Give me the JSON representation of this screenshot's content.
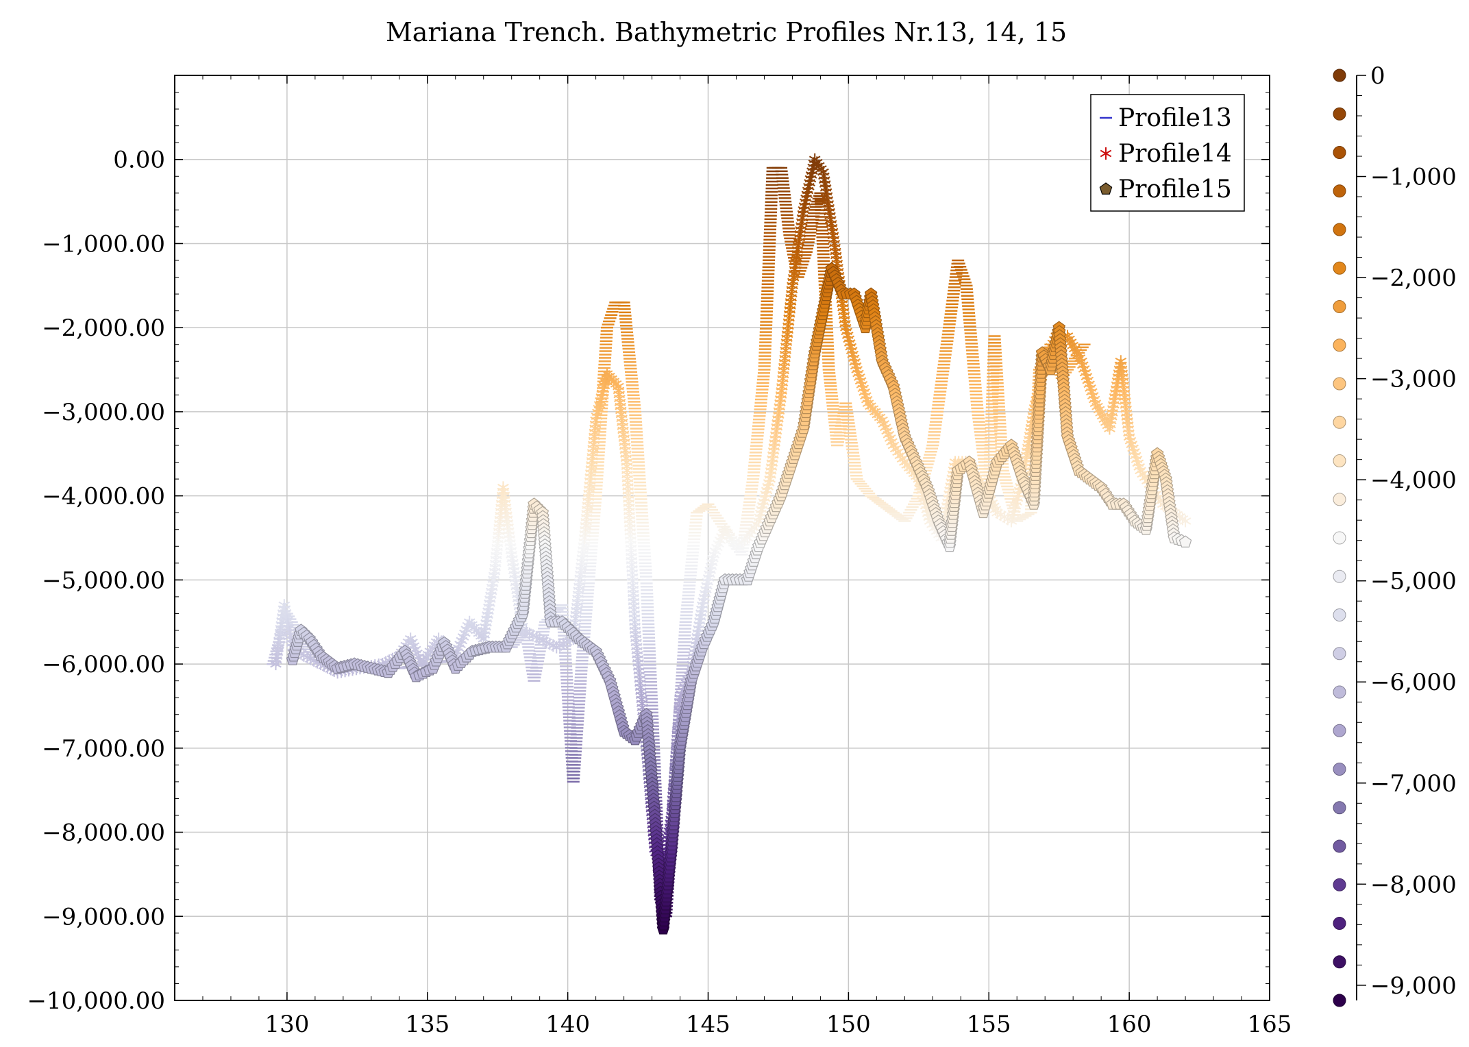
{
  "chart_data": {
    "type": "scatter",
    "title": "Mariana Trench. Bathymetric Profiles Nr.13, 14, 15",
    "xlabel": "",
    "ylabel": "",
    "xlim": [
      126,
      165
    ],
    "ylim": [
      -10000,
      1000
    ],
    "grid": true,
    "legend_position": "top-right",
    "x_ticks": [
      {
        "value": 130,
        "label": "130"
      },
      {
        "value": 135,
        "label": "135"
      },
      {
        "value": 140,
        "label": "140"
      },
      {
        "value": 145,
        "label": "145"
      },
      {
        "value": 150,
        "label": "150"
      },
      {
        "value": 155,
        "label": "155"
      },
      {
        "value": 160,
        "label": "160"
      },
      {
        "value": 165,
        "label": "165"
      }
    ],
    "y_ticks": [
      {
        "value": 0,
        "label": "0.00"
      },
      {
        "value": -1000,
        "label": "−1,000.00"
      },
      {
        "value": -2000,
        "label": "−2,000.00"
      },
      {
        "value": -3000,
        "label": "−3,000.00"
      },
      {
        "value": -4000,
        "label": "−4,000.00"
      },
      {
        "value": -5000,
        "label": "−5,000.00"
      },
      {
        "value": -6000,
        "label": "−6,000.00"
      },
      {
        "value": -7000,
        "label": "−7,000.00"
      },
      {
        "value": -8000,
        "label": "−8,000.00"
      },
      {
        "value": -9000,
        "label": "−9,000.00"
      },
      {
        "value": -10000,
        "label": "−10,000.00"
      }
    ],
    "colorbar": {
      "range": [
        -9150,
        0
      ],
      "ticks": [
        {
          "value": 0,
          "label": "0"
        },
        {
          "value": -1000,
          "label": "−1,000"
        },
        {
          "value": -2000,
          "label": "−2,000"
        },
        {
          "value": -3000,
          "label": "−3,000"
        },
        {
          "value": -4000,
          "label": "−4,000"
        },
        {
          "value": -5000,
          "label": "−5,000"
        },
        {
          "value": -6000,
          "label": "−6,000"
        },
        {
          "value": -7000,
          "label": "−7,000"
        },
        {
          "value": -8000,
          "label": "−8,000"
        },
        {
          "value": -9000,
          "label": "−9,000"
        }
      ],
      "colors": [
        "#2d004b",
        "#542788",
        "#8073ac",
        "#b2abd2",
        "#d8daeb",
        "#f7f7f7",
        "#fee0b6",
        "#fdb863",
        "#e08214",
        "#b35806",
        "#7f3b08"
      ]
    },
    "series": [
      {
        "name": "Profile13",
        "marker": "minus",
        "legend_color": "#3333cc",
        "points": [
          [
            129.5,
            -6000
          ],
          [
            130.0,
            -5400
          ],
          [
            130.5,
            -5700
          ],
          [
            131.0,
            -5950
          ],
          [
            132.0,
            -6050
          ],
          [
            133.0,
            -6000
          ],
          [
            134.0,
            -6050
          ],
          [
            135.0,
            -6000
          ],
          [
            136.0,
            -5950
          ],
          [
            137.0,
            -5800
          ],
          [
            138.0,
            -5800
          ],
          [
            138.5,
            -5600
          ],
          [
            138.8,
            -6200
          ],
          [
            139.2,
            -5500
          ],
          [
            139.8,
            -5300
          ],
          [
            140.2,
            -7400
          ],
          [
            140.5,
            -6000
          ],
          [
            141.0,
            -4000
          ],
          [
            141.4,
            -2000
          ],
          [
            141.7,
            -1700
          ],
          [
            142.0,
            -1700
          ],
          [
            142.4,
            -3000
          ],
          [
            142.8,
            -5000
          ],
          [
            143.3,
            -8800
          ],
          [
            143.5,
            -9000
          ],
          [
            143.8,
            -7500
          ],
          [
            144.2,
            -5500
          ],
          [
            144.6,
            -4200
          ],
          [
            145.0,
            -4100
          ],
          [
            145.4,
            -4300
          ],
          [
            145.8,
            -4500
          ],
          [
            146.2,
            -4700
          ],
          [
            146.6,
            -3800
          ],
          [
            147.0,
            -2500
          ],
          [
            147.3,
            -100
          ],
          [
            147.6,
            -100
          ],
          [
            147.9,
            -900
          ],
          [
            148.2,
            -1400
          ],
          [
            148.5,
            -1100
          ],
          [
            148.8,
            -600
          ],
          [
            149.0,
            -400
          ],
          [
            149.3,
            -2500
          ],
          [
            149.6,
            -3400
          ],
          [
            149.9,
            -2900
          ],
          [
            150.3,
            -3800
          ],
          [
            150.8,
            -4000
          ],
          [
            151.2,
            -4100
          ],
          [
            151.6,
            -4200
          ],
          [
            152.0,
            -4300
          ],
          [
            152.5,
            -4000
          ],
          [
            153.0,
            -3400
          ],
          [
            153.5,
            -2200
          ],
          [
            153.9,
            -1200
          ],
          [
            154.2,
            -1500
          ],
          [
            154.6,
            -3000
          ],
          [
            155.0,
            -4000
          ],
          [
            155.2,
            -2100
          ],
          [
            155.5,
            -3700
          ],
          [
            156.0,
            -4300
          ],
          [
            156.5,
            -4200
          ],
          [
            156.8,
            -2500
          ],
          [
            157.2,
            -2200
          ],
          [
            157.6,
            -2600
          ],
          [
            158.0,
            -2400
          ],
          [
            158.4,
            -2200
          ]
        ]
      },
      {
        "name": "Profile14",
        "marker": "asterisk",
        "legend_color": "#cc1111",
        "points": [
          [
            129.6,
            -6000
          ],
          [
            129.9,
            -5300
          ],
          [
            130.2,
            -5800
          ],
          [
            130.6,
            -5900
          ],
          [
            131.2,
            -6000
          ],
          [
            131.8,
            -6100
          ],
          [
            132.6,
            -6050
          ],
          [
            133.4,
            -6000
          ],
          [
            134.0,
            -5900
          ],
          [
            134.4,
            -5700
          ],
          [
            134.8,
            -6000
          ],
          [
            135.4,
            -5700
          ],
          [
            136.0,
            -5900
          ],
          [
            136.5,
            -5500
          ],
          [
            137.0,
            -5700
          ],
          [
            137.4,
            -4900
          ],
          [
            137.7,
            -3900
          ],
          [
            138.0,
            -4700
          ],
          [
            138.4,
            -5600
          ],
          [
            139.0,
            -5700
          ],
          [
            139.6,
            -5800
          ],
          [
            140.2,
            -5700
          ],
          [
            140.6,
            -4500
          ],
          [
            141.0,
            -3100
          ],
          [
            141.4,
            -2550
          ],
          [
            141.8,
            -2700
          ],
          [
            142.1,
            -3600
          ],
          [
            142.4,
            -5600
          ],
          [
            142.8,
            -7000
          ],
          [
            143.1,
            -8200
          ],
          [
            143.4,
            -8500
          ],
          [
            143.7,
            -7800
          ],
          [
            144.0,
            -6400
          ],
          [
            144.4,
            -6100
          ],
          [
            144.8,
            -5300
          ],
          [
            145.2,
            -4700
          ],
          [
            145.6,
            -4400
          ],
          [
            146.0,
            -4600
          ],
          [
            146.4,
            -4500
          ],
          [
            146.8,
            -4300
          ],
          [
            147.2,
            -3800
          ],
          [
            147.6,
            -2800
          ],
          [
            148.0,
            -1500
          ],
          [
            148.4,
            -600
          ],
          [
            148.8,
            0
          ],
          [
            149.1,
            -150
          ],
          [
            149.5,
            -1000
          ],
          [
            149.9,
            -2000
          ],
          [
            150.3,
            -2500
          ],
          [
            150.7,
            -2900
          ],
          [
            151.2,
            -3100
          ],
          [
            151.6,
            -3400
          ],
          [
            152.0,
            -3600
          ],
          [
            152.5,
            -3800
          ],
          [
            152.9,
            -4300
          ],
          [
            153.3,
            -4500
          ],
          [
            153.8,
            -3600
          ],
          [
            154.3,
            -3600
          ],
          [
            154.8,
            -3900
          ],
          [
            155.3,
            -4200
          ],
          [
            155.8,
            -4300
          ],
          [
            156.2,
            -3800
          ],
          [
            156.6,
            -3000
          ],
          [
            157.0,
            -2400
          ],
          [
            157.4,
            -2100
          ],
          [
            157.8,
            -2100
          ],
          [
            158.3,
            -2400
          ],
          [
            158.8,
            -2900
          ],
          [
            159.3,
            -3200
          ],
          [
            159.7,
            -2400
          ],
          [
            160.0,
            -3300
          ],
          [
            160.4,
            -3700
          ],
          [
            160.8,
            -3900
          ],
          [
            161.2,
            -4100
          ],
          [
            161.6,
            -4200
          ],
          [
            162.0,
            -4300
          ]
        ]
      },
      {
        "name": "Profile15",
        "marker": "pentagon",
        "legend_color": "#7a5c2e",
        "points": [
          [
            130.2,
            -5950
          ],
          [
            130.5,
            -5600
          ],
          [
            130.8,
            -5700
          ],
          [
            131.2,
            -5900
          ],
          [
            131.8,
            -6050
          ],
          [
            132.4,
            -6000
          ],
          [
            133.0,
            -6050
          ],
          [
            133.6,
            -6100
          ],
          [
            134.2,
            -5850
          ],
          [
            134.6,
            -6150
          ],
          [
            135.2,
            -6050
          ],
          [
            135.6,
            -5750
          ],
          [
            136.0,
            -6050
          ],
          [
            136.6,
            -5850
          ],
          [
            137.2,
            -5800
          ],
          [
            137.8,
            -5800
          ],
          [
            138.4,
            -5400
          ],
          [
            138.8,
            -4100
          ],
          [
            139.1,
            -4200
          ],
          [
            139.4,
            -5500
          ],
          [
            139.8,
            -5500
          ],
          [
            140.4,
            -5700
          ],
          [
            141.0,
            -5850
          ],
          [
            141.5,
            -6200
          ],
          [
            142.0,
            -6800
          ],
          [
            142.4,
            -6900
          ],
          [
            142.8,
            -6600
          ],
          [
            143.1,
            -7800
          ],
          [
            143.4,
            -9150
          ],
          [
            143.7,
            -8200
          ],
          [
            144.0,
            -7000
          ],
          [
            144.4,
            -6200
          ],
          [
            144.8,
            -5800
          ],
          [
            145.2,
            -5500
          ],
          [
            145.6,
            -5000
          ],
          [
            146.0,
            -5000
          ],
          [
            146.4,
            -5000
          ],
          [
            146.8,
            -4600
          ],
          [
            147.2,
            -4300
          ],
          [
            147.6,
            -4000
          ],
          [
            148.0,
            -3600
          ],
          [
            148.4,
            -3200
          ],
          [
            148.8,
            -2300
          ],
          [
            149.1,
            -1800
          ],
          [
            149.4,
            -1300
          ],
          [
            149.8,
            -1600
          ],
          [
            150.2,
            -1600
          ],
          [
            150.6,
            -2000
          ],
          [
            150.8,
            -1600
          ],
          [
            151.2,
            -2400
          ],
          [
            151.6,
            -2700
          ],
          [
            152.0,
            -3300
          ],
          [
            152.4,
            -3600
          ],
          [
            152.8,
            -3900
          ],
          [
            153.2,
            -4300
          ],
          [
            153.6,
            -4600
          ],
          [
            153.9,
            -3700
          ],
          [
            154.3,
            -3600
          ],
          [
            154.8,
            -4200
          ],
          [
            155.3,
            -3600
          ],
          [
            155.8,
            -3400
          ],
          [
            156.2,
            -3800
          ],
          [
            156.6,
            -4100
          ],
          [
            156.9,
            -2300
          ],
          [
            157.2,
            -2500
          ],
          [
            157.5,
            -2000
          ],
          [
            157.8,
            -3300
          ],
          [
            158.2,
            -3700
          ],
          [
            158.6,
            -3800
          ],
          [
            159.0,
            -3900
          ],
          [
            159.4,
            -4100
          ],
          [
            159.8,
            -4100
          ],
          [
            160.2,
            -4300
          ],
          [
            160.6,
            -4400
          ],
          [
            161.0,
            -3500
          ],
          [
            161.3,
            -3800
          ],
          [
            161.6,
            -4500
          ],
          [
            162.0,
            -4550
          ]
        ]
      }
    ]
  }
}
